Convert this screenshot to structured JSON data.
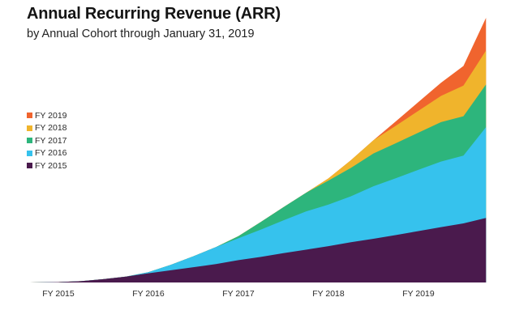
{
  "chart_data": {
    "type": "area",
    "stacked": true,
    "title": "Annual Recurring Revenue (ARR)",
    "subtitle": "by Annual Cohort through January 31, 2019",
    "xlabel": "",
    "ylabel": "",
    "x_ticks": [
      "FY 2015",
      "FY 2016",
      "FY 2017",
      "FY 2018",
      "FY 2019"
    ],
    "x": [
      2015.0,
      2015.25,
      2015.5,
      2015.75,
      2016.0,
      2016.25,
      2016.5,
      2016.75,
      2017.0,
      2017.25,
      2017.5,
      2017.75,
      2018.0,
      2018.25,
      2018.5,
      2018.75,
      2019.0,
      2019.25,
      2019.5,
      2019.75
    ],
    "grid": false,
    "legend_position": "left",
    "series": [
      {
        "name": "FY 2015",
        "color": "#4a1a4d",
        "values": [
          0.2,
          0.6,
          1.5,
          2.7,
          4.2,
          5.6,
          7.0,
          8.4,
          10.2,
          11.7,
          13.4,
          15.0,
          16.6,
          18.4,
          20.0,
          21.7,
          23.5,
          25.3,
          27.0,
          29.5
        ]
      },
      {
        "name": "FY 2016",
        "color": "#36c2ed",
        "values": [
          0,
          0,
          0,
          0,
          0.5,
          2.5,
          5.0,
          7.8,
          10.0,
          12.5,
          15.0,
          17.5,
          19.0,
          21.0,
          24.0,
          26.0,
          28.0,
          30.0,
          31.0,
          41.5
        ]
      },
      {
        "name": "FY 2017",
        "color": "#2db57c",
        "values": [
          0,
          0,
          0,
          0,
          0,
          0,
          0,
          0,
          1.0,
          3.5,
          6.0,
          8.5,
          11.0,
          13.0,
          15.0,
          16.0,
          17.0,
          18.0,
          18.0,
          19.5
        ]
      },
      {
        "name": "FY 2018",
        "color": "#f0b42c",
        "values": [
          0,
          0,
          0,
          0,
          0,
          0,
          0,
          0,
          0,
          0,
          0,
          0,
          1.0,
          3.5,
          6.0,
          8.0,
          10.0,
          12.0,
          14.0,
          15.5
        ]
      },
      {
        "name": "FY 2019",
        "color": "#f0642e",
        "values": [
          0,
          0,
          0,
          0,
          0,
          0,
          0,
          0,
          0,
          0,
          0,
          0,
          0,
          0,
          0,
          2.0,
          4.0,
          6.0,
          9.0,
          15.0
        ]
      }
    ],
    "ylim": [
      0,
      121
    ]
  }
}
